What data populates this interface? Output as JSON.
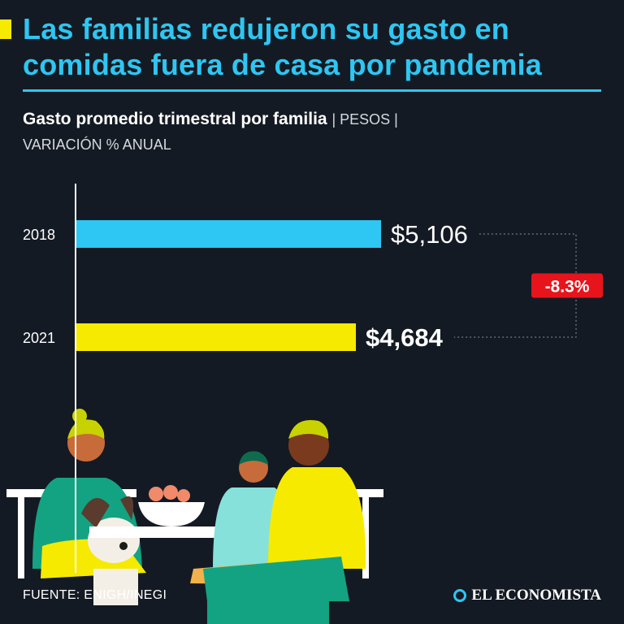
{
  "header": {
    "title": "Las familias redujeron su gasto en comidas fuera de casa por pandemia",
    "subtitle_main": "Gasto promedio trimestral por familia",
    "subtitle_unit": "| PESOS |",
    "subtitle_secondary": "VARIACIÓN % ANUAL"
  },
  "chart_data": {
    "type": "bar",
    "orientation": "horizontal",
    "title": "Gasto promedio trimestral por familia",
    "xlabel": "",
    "ylabel": "",
    "unit": "PESOS",
    "categories": [
      "2018",
      "2021"
    ],
    "values": [
      5106,
      4684
    ],
    "value_labels": [
      "$5,106",
      "$4,684"
    ],
    "colors": [
      "#2ec6f2",
      "#f6ea00"
    ],
    "xlim": [
      0,
      5106
    ],
    "annotation": {
      "text": "-8.3%",
      "color": "#e8141c",
      "from": "2018",
      "to": "2021"
    }
  },
  "footer": {
    "source": "FUENTE: ENIGH/INEGI",
    "brand": "EL ECONOMISTA"
  }
}
